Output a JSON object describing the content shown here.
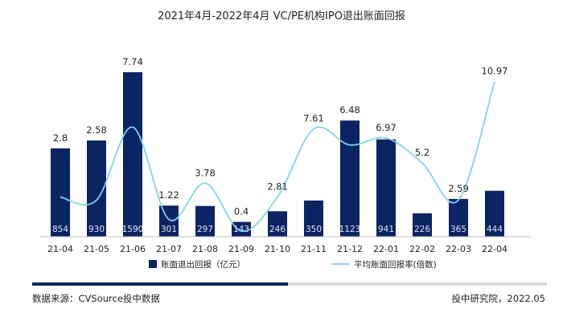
{
  "title": "2021年4月-2022年4月 VC/PE机构IPO退出账面回报",
  "source": "数据来源：CVSource投中数据",
  "credit": "投中研究院，2022.05",
  "colors": {
    "bar": "#0b2463",
    "line": "#7fd3ef",
    "text": "#222222"
  },
  "chart_data": {
    "type": "bar",
    "title": "2021年4月-2022年4月 VC/PE机构IPO退出账面回报",
    "categories": [
      "21-04",
      "21-05",
      "21-06",
      "21-07",
      "21-08",
      "21-09",
      "21-10",
      "21-11",
      "21-12",
      "22-01",
      "22-02",
      "22-03",
      "22-04"
    ],
    "series": [
      {
        "name": "账面退出回报（亿元）",
        "type": "bar",
        "values": [
          854,
          930,
          1590,
          301,
          297,
          143,
          246,
          350,
          1123,
          941,
          226,
          365,
          444
        ]
      },
      {
        "name": "平均账面回报率(倍数)",
        "type": "line",
        "smooth": true,
        "values": [
          2.8,
          2.58,
          7.74,
          1.22,
          3.78,
          0.4,
          2.81,
          7.61,
          6.48,
          6.97,
          5.2,
          2.59,
          10.97
        ]
      }
    ],
    "ylim_bar": [
      0,
      1700
    ],
    "ylim_line": [
      0,
      11.5
    ],
    "legend_position": "bottom",
    "grid": false
  }
}
